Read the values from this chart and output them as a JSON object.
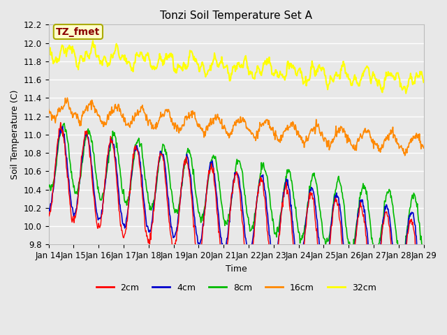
{
  "title": "Tonzi Soil Temperature Set A",
  "xlabel": "Time",
  "ylabel": "Soil Temperature (C)",
  "ylim": [
    9.8,
    12.2
  ],
  "background_color": "#e8e8e8",
  "plot_bg_color": "#e8e8e8",
  "grid_color": "white",
  "annotation_text": "TZ_fmet",
  "annotation_color": "#8b0000",
  "annotation_bg": "#ffffcc",
  "xtick_labels": [
    "Jan 14",
    "Jan 15",
    "Jan 16",
    "Jan 17",
    "Jan 18",
    "Jan 19",
    "Jan 20",
    "Jan 21",
    "Jan 22",
    "Jan 23",
    "Jan 24",
    "Jan 25",
    "Jan 26",
    "Jan 27",
    "Jan 28",
    "Jan 29"
  ],
  "legend_entries": [
    "2cm",
    "4cm",
    "8cm",
    "16cm",
    "32cm"
  ],
  "line_colors": [
    "#ff0000",
    "#0000cc",
    "#00bb00",
    "#ff8800",
    "#ffff00"
  ],
  "line_widths": [
    1.0,
    1.2,
    1.2,
    1.2,
    1.5
  ],
  "n_days": 15,
  "pts_per_day": 48,
  "base_2cm": 10.62,
  "base_4cm": 10.65,
  "base_8cm": 10.78,
  "base_16cm": 11.28,
  "base_32cm": 11.9,
  "amp_2cm": 0.5,
  "amp_4cm": 0.45,
  "amp_8cm": 0.36,
  "amp_16cm": 0.09,
  "amp_32cm": 0.07,
  "drift_2cm": -0.072,
  "drift_4cm": -0.065,
  "drift_8cm": -0.055,
  "drift_16cm": -0.026,
  "drift_32cm": -0.022
}
